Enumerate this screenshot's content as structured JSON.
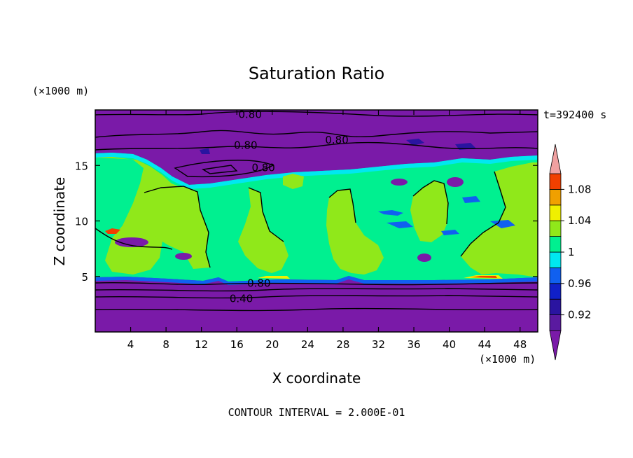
{
  "chart_data": {
    "type": "heatmap",
    "title": "Saturation Ratio",
    "xlabel": "X coordinate",
    "ylabel": "Z coordinate",
    "x_unit": "(×1000 m)",
    "y_unit": "(×1000 m)",
    "time_label": "t=392400 s",
    "footer": "CONTOUR INTERVAL = 2.000E-01",
    "xlim": [
      0,
      50
    ],
    "ylim": [
      0,
      20
    ],
    "x_ticks": [
      4,
      8,
      12,
      16,
      20,
      24,
      28,
      32,
      36,
      40,
      44,
      48
    ],
    "y_ticks": [
      5,
      10,
      15
    ],
    "grid": false,
    "colorbar": {
      "levels": [
        0.92,
        0.96,
        1,
        1.04,
        1.08
      ],
      "level_labels": [
        "0.92",
        "0.96",
        "1",
        "1.04",
        "1.08"
      ],
      "boundaries": [
        0.9,
        0.92,
        0.94,
        0.96,
        0.98,
        1.0,
        1.02,
        1.04,
        1.06,
        1.08,
        1.1
      ],
      "colors": [
        "#5a1aa0",
        "#2a14a0",
        "#1020c8",
        "#1060f0",
        "#00e8f0",
        "#00f090",
        "#90e81a",
        "#f0f000",
        "#f0a000",
        "#f04000"
      ],
      "under_color": "#7a1aa8",
      "over_color": "#f0a0a0"
    },
    "contour_labels": [
      {
        "text": "0.80",
        "x": 17.5,
        "y": 19.6
      },
      {
        "text": "0.80",
        "x": 17.0,
        "y": 16.8
      },
      {
        "text": "0.80",
        "x": 27.3,
        "y": 17.3
      },
      {
        "text": "0.80",
        "x": 19.0,
        "y": 14.8
      },
      {
        "text": "0.80",
        "x": 18.5,
        "y": 4.4
      },
      {
        "text": "0.40",
        "x": 16.5,
        "y": 3.0
      }
    ]
  }
}
